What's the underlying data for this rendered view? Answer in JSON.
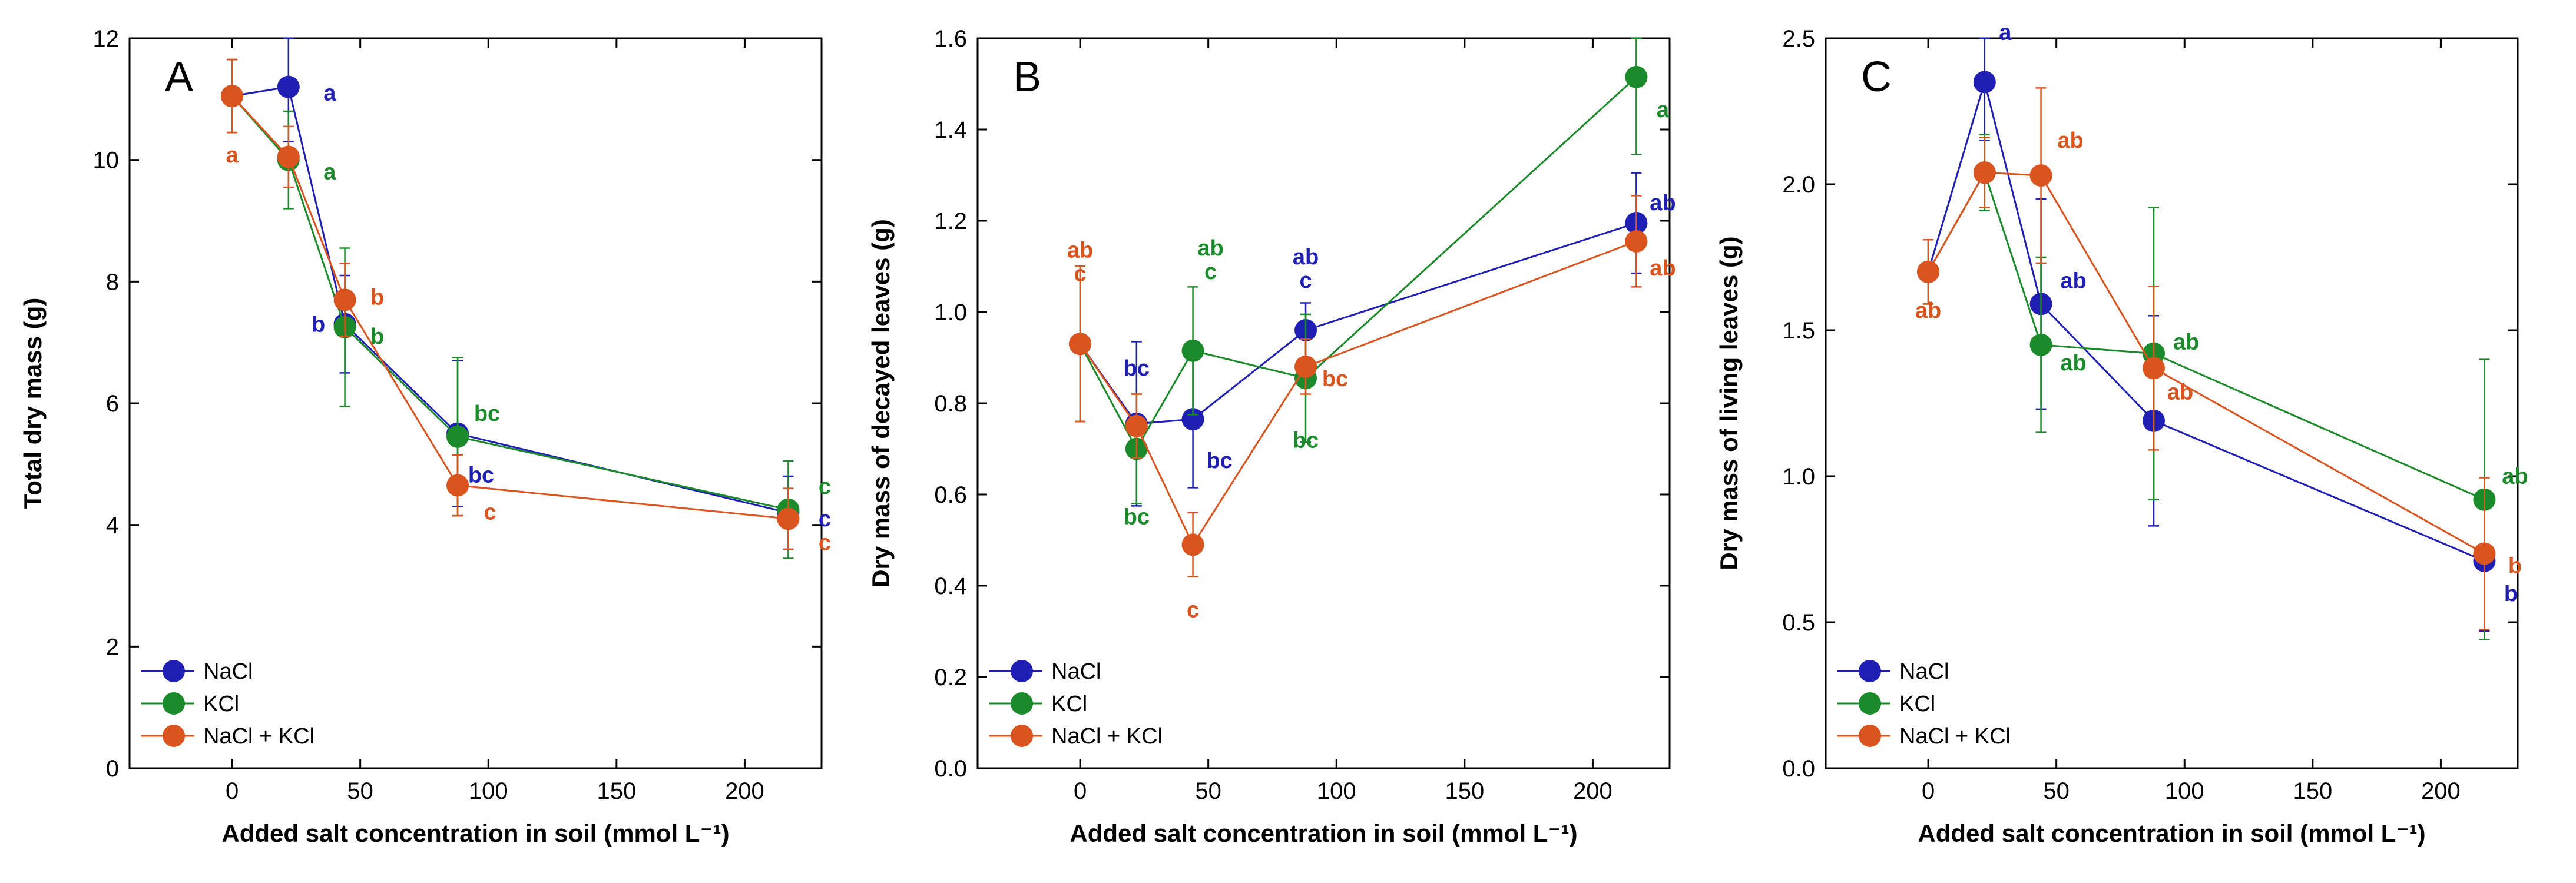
{
  "figure": {
    "colors": {
      "NaCl": "#1f1fb4",
      "KCl": "#1b8a2a",
      "NaCl + KCl": "#d9541e"
    }
  },
  "chart_data": [
    {
      "type": "line",
      "panel": "A",
      "xlabel": "Added salt concentration in soil (mmol L⁻¹)",
      "ylabel": "Total dry mass (g)",
      "xlim": [
        -40,
        230
      ],
      "ylim": [
        0,
        12
      ],
      "xticks": [
        0,
        50,
        100,
        150,
        200
      ],
      "yticks": [
        0,
        2,
        4,
        6,
        8,
        10,
        12
      ],
      "legend": {
        "position": "bottom-left",
        "entries": [
          "NaCl",
          "KCl",
          "NaCl + KCl"
        ]
      },
      "series": [
        {
          "name": "NaCl",
          "x": [
            0,
            22,
            44,
            88,
            217
          ],
          "values": [
            11.05,
            11.2,
            7.3,
            5.5,
            4.2
          ],
          "err": [
            0.6,
            0.9,
            0.8,
            1.2,
            0.6
          ],
          "labels": [
            "",
            "a",
            "b",
            "bc",
            "c"
          ]
        },
        {
          "name": "KCl",
          "x": [
            0,
            22,
            44,
            88,
            217
          ],
          "values": [
            11.05,
            10.0,
            7.25,
            5.45,
            4.25
          ],
          "err": [
            0.6,
            0.8,
            1.3,
            1.3,
            0.8
          ],
          "labels": [
            "",
            "a",
            "b",
            "bc",
            "c"
          ]
        },
        {
          "name": "NaCl + KCl",
          "x": [
            0,
            22,
            44,
            88,
            217
          ],
          "values": [
            11.05,
            10.05,
            7.7,
            4.65,
            4.1
          ],
          "err": [
            0.6,
            0.5,
            0.6,
            0.5,
            0.5
          ],
          "labels": [
            "a",
            "",
            "b",
            "c",
            "c"
          ]
        }
      ]
    },
    {
      "type": "line",
      "panel": "B",
      "xlabel": "Added salt concentration in soil (mmol L⁻¹)",
      "ylabel": "Dry mass of decayed leaves (g)",
      "xlim": [
        -40,
        230
      ],
      "ylim": [
        0,
        1.6
      ],
      "xticks": [
        0,
        50,
        100,
        150,
        200
      ],
      "yticks": [
        0,
        0.2,
        0.4,
        0.6,
        0.8,
        1.0,
        1.2,
        1.4,
        1.6
      ],
      "legend": {
        "position": "bottom-left",
        "entries": [
          "NaCl",
          "KCl",
          "NaCl + KCl"
        ]
      },
      "series": [
        {
          "name": "NaCl",
          "x": [
            0,
            22,
            44,
            88,
            217
          ],
          "values": [
            0.93,
            0.755,
            0.765,
            0.96,
            1.195
          ],
          "err": [
            0.17,
            0.18,
            0.15,
            0.06,
            0.11
          ],
          "labels": [
            "",
            "bc",
            "bc",
            "c",
            "ab"
          ]
        },
        {
          "name": "KCl",
          "x": [
            0,
            22,
            44,
            88,
            217
          ],
          "values": [
            0.93,
            0.7,
            0.915,
            0.855,
            1.515
          ],
          "err": [
            0.17,
            0.12,
            0.14,
            0.14,
            0.17
          ],
          "labels": [
            "",
            "bc",
            "c",
            "bc",
            "a"
          ]
        },
        {
          "name": "NaCl + KCl",
          "x": [
            0,
            22,
            44,
            88,
            217
          ],
          "values": [
            0.93,
            0.75,
            0.49,
            0.88,
            1.155
          ],
          "err": [
            0.17,
            0.07,
            0.07,
            0.06,
            0.1
          ],
          "labels": [
            "c",
            "",
            "c",
            "bc",
            "ab"
          ]
        }
      ],
      "extra_labels": [
        {
          "series": "NaCl + KCl",
          "x": 0,
          "text": "ab"
        },
        {
          "series": "KCl",
          "x": 44,
          "text": "ab"
        },
        {
          "series": "NaCl",
          "x": 88,
          "text": "ab"
        }
      ]
    },
    {
      "type": "line",
      "panel": "C",
      "xlabel": "Added salt concentration in soil (mmol L⁻¹)",
      "ylabel": "Dry mass of living leaves (g)",
      "xlim": [
        -40,
        230
      ],
      "ylim": [
        0,
        2.5
      ],
      "xticks": [
        0,
        50,
        100,
        150,
        200
      ],
      "yticks": [
        0,
        0.5,
        1.0,
        1.5,
        2.0,
        2.5
      ],
      "legend": {
        "position": "bottom-left",
        "entries": [
          "NaCl",
          "KCl",
          "NaCl + KCl"
        ]
      },
      "series": [
        {
          "name": "NaCl",
          "x": [
            0,
            22,
            44,
            88,
            217
          ],
          "values": [
            1.7,
            2.35,
            1.59,
            1.19,
            0.71
          ],
          "err": [
            0.11,
            0.2,
            0.36,
            0.36,
            0.24
          ],
          "labels": [
            "",
            "a",
            "ab",
            "",
            "b"
          ]
        },
        {
          "name": "KCl",
          "x": [
            0,
            22,
            44,
            88,
            217
          ],
          "values": [
            1.7,
            2.04,
            1.45,
            1.42,
            0.92
          ],
          "err": [
            0.11,
            0.13,
            0.3,
            0.5,
            0.48
          ],
          "labels": [
            "",
            "",
            "ab",
            "ab",
            "ab"
          ]
        },
        {
          "name": "NaCl + KCl",
          "x": [
            0,
            22,
            44,
            88,
            217
          ],
          "values": [
            1.7,
            2.04,
            2.03,
            1.37,
            0.735
          ],
          "err": [
            0.11,
            0.12,
            0.3,
            0.28,
            0.26
          ],
          "labels": [
            "ab",
            "",
            "ab",
            "ab",
            "b"
          ]
        }
      ]
    }
  ]
}
